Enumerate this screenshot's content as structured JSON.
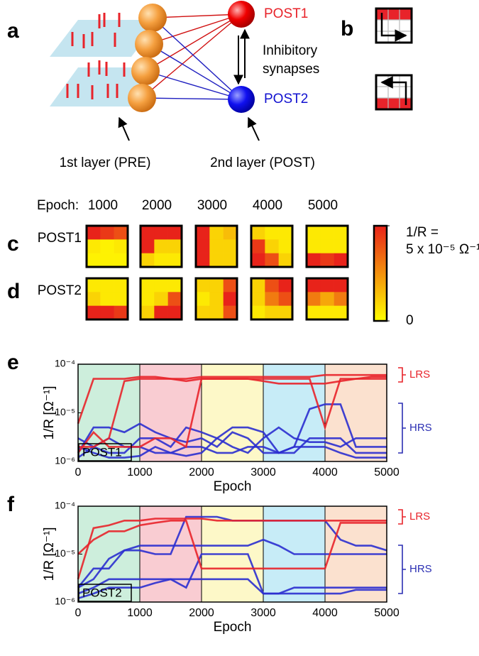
{
  "figure": {
    "panel_labels": [
      "a",
      "b",
      "c",
      "d",
      "e",
      "f"
    ],
    "post1": "POST1",
    "post2": "POST2",
    "inhibitory": [
      "Inhibitory",
      "synapses"
    ],
    "pre_label": "1st layer (PRE)",
    "post_label": "2nd layer (POST)"
  },
  "heatmaps": {
    "epoch_label": "Epoch:",
    "epochs": [
      1000,
      2000,
      3000,
      4000,
      5000
    ],
    "rows": [
      {
        "label": "POST1",
        "grids": [
          [
            5e-05,
            4.5e-05,
            4e-05,
            5e-06,
            3e-06,
            5e-06,
            3e-06,
            3e-06,
            3e-06
          ],
          [
            5e-05,
            5e-05,
            5e-05,
            5e-05,
            1e-05,
            1e-05,
            1e-05,
            5e-06,
            5e-06
          ],
          [
            5e-05,
            1e-05,
            1.5e-05,
            5e-05,
            1e-05,
            1e-05,
            5e-05,
            1e-05,
            1e-05
          ],
          [
            1e-05,
            5e-06,
            5e-06,
            4.5e-05,
            1e-05,
            5e-06,
            5e-05,
            4e-05,
            1e-05
          ],
          [
            5e-06,
            5e-06,
            5e-06,
            5e-06,
            5e-06,
            5e-06,
            5e-05,
            4.5e-05,
            5e-05
          ]
        ]
      },
      {
        "label": "POST2",
        "grids": [
          [
            5e-06,
            5e-06,
            5e-06,
            1e-05,
            5e-06,
            5e-06,
            5e-05,
            5e-05,
            4.5e-05
          ],
          [
            5e-06,
            5e-06,
            5e-06,
            5e-06,
            1e-05,
            4e-05,
            1e-05,
            5e-05,
            5e-05
          ],
          [
            1e-05,
            1e-05,
            4e-05,
            5e-06,
            1e-05,
            5e-05,
            1e-05,
            1e-05,
            4e-05
          ],
          [
            1e-05,
            4e-05,
            5e-05,
            1e-05,
            3e-05,
            4e-05,
            5e-06,
            1e-05,
            1e-05
          ],
          [
            5e-05,
            5e-05,
            5e-05,
            3e-05,
            2e-05,
            3e-05,
            5e-06,
            5e-06,
            5e-06
          ]
        ]
      }
    ],
    "colorbar": {
      "title": "1/R =",
      "clim": [
        0,
        5e-05
      ],
      "ticks": [
        0,
        {
          "value": 5e-05,
          "label": "5 x 10⁻⁵ Ω⁻¹"
        }
      ],
      "colors": [
        "#ffff00",
        "#e8231a"
      ]
    }
  },
  "chart_data": [
    {
      "type": "line",
      "xlabel": "Epoch",
      "ylabel": "1/R [Ω⁻¹]",
      "inset_label": "POST1",
      "log_y": true,
      "xlim": [
        0,
        5000
      ],
      "ylim": [
        1e-06,
        0.0001
      ],
      "xticks": [
        0,
        1000,
        2000,
        3000,
        4000,
        5000
      ],
      "yticks": [
        {
          "value": 1e-06,
          "label": "10⁻⁶"
        },
        {
          "value": 1e-05,
          "label": "10⁻⁵"
        },
        {
          "value": 0.0001,
          "label": "10⁻⁴"
        }
      ],
      "band_colors": [
        "#cdeedc",
        "#f9ccd2",
        "#fdf8c8",
        "#c7ecf7",
        "#fbe1cf"
      ],
      "annotations": [
        {
          "text": "LRS",
          "color": "#e8232a"
        },
        {
          "text": "HRS",
          "color": "#2b2fb3"
        }
      ],
      "x": [
        0,
        250,
        500,
        750,
        1000,
        1250,
        1500,
        1750,
        2000,
        2250,
        2500,
        2750,
        3000,
        3250,
        3500,
        3750,
        4000,
        4250,
        4500,
        4750,
        5000
      ],
      "series": [
        {
          "color": "#2b2fcf",
          "values": [
            1.5e-06,
            5e-06,
            5e-06,
            4e-06,
            6e-06,
            4e-06,
            3e-06,
            2.5e-06,
            3e-06,
            2e-06,
            4e-06,
            3e-06,
            1.5e-06,
            1.5e-06,
            2e-06,
            1.2e-05,
            1.5e-05,
            1.5e-05,
            2e-06,
            2e-06,
            2e-06
          ]
        },
        {
          "color": "#2b2fcf",
          "values": [
            3e-06,
            2e-06,
            3e-06,
            2e-06,
            2e-06,
            1.5e-06,
            1.5e-06,
            2e-06,
            2e-06,
            1.5e-06,
            1.5e-06,
            2e-06,
            2e-06,
            1.5e-06,
            1.5e-06,
            3e-06,
            3e-06,
            3e-06,
            1.5e-06,
            1.5e-06,
            1.5e-06
          ]
        },
        {
          "color": "#2b2fcf",
          "values": [
            1.2e-06,
            2e-06,
            1.5e-06,
            1.5e-06,
            3e-06,
            3e-06,
            2e-06,
            5e-06,
            4e-06,
            3e-06,
            2e-06,
            1.5e-06,
            3e-06,
            5e-06,
            3e-06,
            2.5e-06,
            2.5e-06,
            2e-06,
            3e-06,
            3e-06,
            3e-06
          ]
        },
        {
          "color": "#2b2fcf",
          "values": [
            2e-06,
            1.5e-06,
            1.2e-06,
            1.2e-06,
            1.3e-06,
            2e-06,
            1.5e-06,
            1.3e-06,
            1.5e-06,
            3e-06,
            5e-06,
            5e-06,
            4e-06,
            1.5e-06,
            2e-06,
            2e-06,
            2e-06,
            1.5e-06,
            1.2e-06,
            1.2e-06,
            1.2e-06
          ]
        },
        {
          "color": "#e8232a",
          "values": [
            6e-06,
            5e-05,
            5e-05,
            5e-05,
            5.5e-05,
            5.5e-05,
            5e-05,
            5e-05,
            5.5e-05,
            5.5e-05,
            5.5e-05,
            5.5e-05,
            5.5e-05,
            5.5e-05,
            5.5e-05,
            5.5e-05,
            6e-05,
            6e-05,
            6e-05,
            6e-05,
            6e-05
          ]
        },
        {
          "color": "#e8232a",
          "values": [
            2e-06,
            2e-06,
            3e-06,
            4.5e-05,
            5e-05,
            5e-05,
            5e-05,
            4.5e-05,
            5e-05,
            5e-05,
            5e-05,
            5e-05,
            4.5e-05,
            4e-05,
            4e-05,
            4e-05,
            4e-05,
            4.5e-05,
            5e-05,
            5e-05,
            5e-05
          ]
        },
        {
          "color": "#e8232a",
          "values": [
            1.5e-06,
            4e-06,
            2e-06,
            2e-06,
            2e-06,
            3e-06,
            3e-06,
            2e-06,
            5e-05,
            5e-05,
            5e-05,
            5e-05,
            5e-05,
            5e-05,
            5e-05,
            5e-05,
            5e-06,
            5e-05,
            5e-05,
            5.5e-05,
            5.5e-05
          ]
        }
      ]
    },
    {
      "type": "line",
      "xlabel": "Epoch",
      "ylabel": "1/R [Ω⁻¹]",
      "inset_label": "POST2",
      "log_y": true,
      "xlim": [
        0,
        5000
      ],
      "ylim": [
        1e-06,
        0.0001
      ],
      "xticks": [
        0,
        1000,
        2000,
        3000,
        4000,
        5000
      ],
      "yticks": [
        {
          "value": 1e-06,
          "label": "10⁻⁶"
        },
        {
          "value": 1e-05,
          "label": "10⁻⁵"
        },
        {
          "value": 0.0001,
          "label": "10⁻⁴"
        }
      ],
      "band_colors": [
        "#cdeedc",
        "#f9ccd2",
        "#fdf8c8",
        "#c7ecf7",
        "#fbe1cf"
      ],
      "annotations": [
        {
          "text": "LRS",
          "color": "#e8232a"
        },
        {
          "text": "HRS",
          "color": "#2b2fb3"
        }
      ],
      "x": [
        0,
        250,
        500,
        750,
        1000,
        1250,
        1500,
        1750,
        2000,
        2250,
        2500,
        2750,
        3000,
        3250,
        3500,
        3750,
        4000,
        4250,
        4500,
        4750,
        5000
      ],
      "series": [
        {
          "color": "#2b2fcf",
          "values": [
            2e-06,
            3e-06,
            8e-06,
            1.2e-05,
            1.2e-05,
            1e-05,
            1e-05,
            6e-05,
            6e-05,
            6e-05,
            5e-05,
            5e-05,
            5e-05,
            5e-05,
            5e-05,
            5e-05,
            5e-05,
            2e-05,
            1.5e-05,
            1.5e-05,
            1.2e-05
          ]
        },
        {
          "color": "#2b2fcf",
          "values": [
            2e-06,
            5e-06,
            5e-06,
            1.2e-05,
            1.5e-05,
            1.5e-05,
            1.5e-05,
            1.5e-05,
            1.5e-05,
            1.5e-05,
            1.5e-05,
            1.5e-05,
            2e-05,
            1.5e-05,
            1e-05,
            1e-05,
            1e-05,
            1e-05,
            1e-05,
            1e-05,
            1e-05
          ]
        },
        {
          "color": "#2b2fcf",
          "values": [
            1.5e-06,
            2e-06,
            3e-06,
            3e-06,
            3e-06,
            3e-06,
            3e-06,
            3e-06,
            3e-06,
            3e-06,
            3e-06,
            3e-06,
            1.5e-06,
            1.5e-06,
            2e-06,
            2e-06,
            2e-06,
            2e-06,
            2e-06,
            2e-06,
            2e-06
          ]
        },
        {
          "color": "#2b2fcf",
          "values": [
            1.2e-06,
            1.5e-06,
            2e-06,
            2e-06,
            2e-06,
            2.5e-06,
            3e-06,
            2e-06,
            1e-05,
            1e-05,
            1e-05,
            1e-05,
            1.5e-06,
            1.5e-06,
            1.5e-06,
            1.5e-06,
            1.5e-06,
            1.5e-06,
            1.8e-06,
            1.8e-06,
            1.8e-06
          ]
        },
        {
          "color": "#e8232a",
          "values": [
            3e-06,
            3.5e-05,
            4e-05,
            5e-05,
            5e-05,
            5.5e-05,
            5.5e-05,
            5.5e-05,
            5.5e-05,
            5e-05,
            5e-05,
            5e-05,
            5e-05,
            5e-05,
            5e-05,
            5e-05,
            5e-05,
            5e-05,
            5e-05,
            5e-05,
            5e-05
          ]
        },
        {
          "color": "#e8232a",
          "values": [
            1e-05,
            2e-05,
            3e-05,
            3e-05,
            4e-05,
            4.5e-05,
            5e-05,
            5e-05,
            5e-06,
            5e-06,
            5e-06,
            5e-06,
            5e-06,
            5e-06,
            5e-06,
            5e-06,
            5e-06,
            4.5e-05,
            4.5e-05,
            4.5e-05,
            4.5e-05
          ]
        }
      ]
    }
  ]
}
